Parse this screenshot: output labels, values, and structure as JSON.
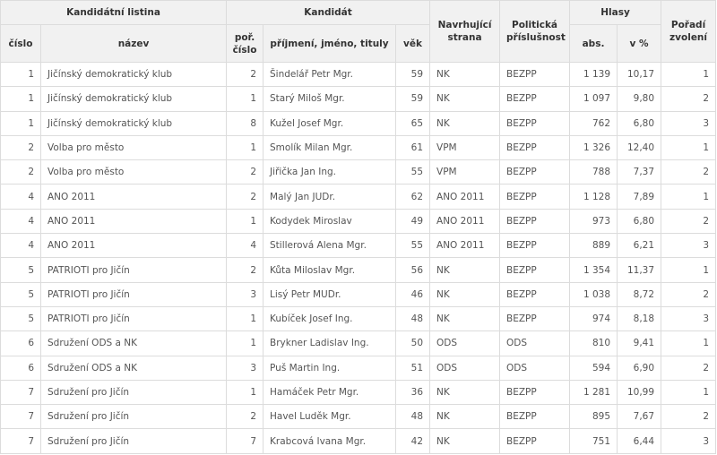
{
  "header": {
    "group_list": "Kandidátní listina",
    "group_candidate": "Kandidát",
    "proposing_party": "Navrhující strana",
    "political_affiliation": "Politická příslušnost",
    "group_votes": "Hlasy",
    "election_order": "Pořadí zvolení",
    "list_number": "číslo",
    "list_name": "název",
    "candidate_order": "poř. číslo",
    "candidate_name": "příjmení, jméno, tituly",
    "age": "věk",
    "votes_abs": "abs.",
    "votes_pct": "v %"
  },
  "rows": [
    {
      "list_no": "1",
      "list_name": "Jičínský demokratický klub",
      "order": "2",
      "name": "Šindelář Petr Mgr.",
      "age": "59",
      "party": "NK",
      "affiliation": "BEZPP",
      "abs": "1 139",
      "pct": "10,17",
      "elected": "1"
    },
    {
      "list_no": "1",
      "list_name": "Jičínský demokratický klub",
      "order": "1",
      "name": "Starý Miloš Mgr.",
      "age": "59",
      "party": "NK",
      "affiliation": "BEZPP",
      "abs": "1 097",
      "pct": "9,80",
      "elected": "2"
    },
    {
      "list_no": "1",
      "list_name": "Jičínský demokratický klub",
      "order": "8",
      "name": "Kužel Josef Mgr.",
      "age": "65",
      "party": "NK",
      "affiliation": "BEZPP",
      "abs": "762",
      "pct": "6,80",
      "elected": "3"
    },
    {
      "list_no": "2",
      "list_name": "Volba pro město",
      "order": "1",
      "name": "Smolík Milan Mgr.",
      "age": "61",
      "party": "VPM",
      "affiliation": "BEZPP",
      "abs": "1 326",
      "pct": "12,40",
      "elected": "1"
    },
    {
      "list_no": "2",
      "list_name": "Volba pro město",
      "order": "2",
      "name": "Jiřička Jan Ing.",
      "age": "55",
      "party": "VPM",
      "affiliation": "BEZPP",
      "abs": "788",
      "pct": "7,37",
      "elected": "2"
    },
    {
      "list_no": "4",
      "list_name": "ANO 2011",
      "order": "2",
      "name": "Malý Jan JUDr.",
      "age": "62",
      "party": "ANO 2011",
      "affiliation": "BEZPP",
      "abs": "1 128",
      "pct": "7,89",
      "elected": "1"
    },
    {
      "list_no": "4",
      "list_name": "ANO 2011",
      "order": "1",
      "name": "Kodydek Miroslav",
      "age": "49",
      "party": "ANO 2011",
      "affiliation": "BEZPP",
      "abs": "973",
      "pct": "6,80",
      "elected": "2"
    },
    {
      "list_no": "4",
      "list_name": "ANO 2011",
      "order": "4",
      "name": "Stillerová Alena Mgr.",
      "age": "55",
      "party": "ANO 2011",
      "affiliation": "BEZPP",
      "abs": "889",
      "pct": "6,21",
      "elected": "3"
    },
    {
      "list_no": "5",
      "list_name": "PATRIOTI pro Jičín",
      "order": "2",
      "name": "Kůta Miloslav Mgr.",
      "age": "56",
      "party": "NK",
      "affiliation": "BEZPP",
      "abs": "1 354",
      "pct": "11,37",
      "elected": "1"
    },
    {
      "list_no": "5",
      "list_name": "PATRIOTI pro Jičín",
      "order": "3",
      "name": "Lisý Petr MUDr.",
      "age": "46",
      "party": "NK",
      "affiliation": "BEZPP",
      "abs": "1 038",
      "pct": "8,72",
      "elected": "2"
    },
    {
      "list_no": "5",
      "list_name": "PATRIOTI pro Jičín",
      "order": "1",
      "name": "Kubíček Josef Ing.",
      "age": "48",
      "party": "NK",
      "affiliation": "BEZPP",
      "abs": "974",
      "pct": "8,18",
      "elected": "3"
    },
    {
      "list_no": "6",
      "list_name": "Sdružení ODS a NK",
      "order": "1",
      "name": "Brykner Ladislav Ing.",
      "age": "50",
      "party": "ODS",
      "affiliation": "ODS",
      "abs": "810",
      "pct": "9,41",
      "elected": "1"
    },
    {
      "list_no": "6",
      "list_name": "Sdružení ODS a NK",
      "order": "3",
      "name": "Puš Martin Ing.",
      "age": "51",
      "party": "ODS",
      "affiliation": "ODS",
      "abs": "594",
      "pct": "6,90",
      "elected": "2"
    },
    {
      "list_no": "7",
      "list_name": "Sdružení pro Jičín",
      "order": "1",
      "name": "Hamáček Petr Mgr.",
      "age": "36",
      "party": "NK",
      "affiliation": "BEZPP",
      "abs": "1 281",
      "pct": "10,99",
      "elected": "1"
    },
    {
      "list_no": "7",
      "list_name": "Sdružení pro Jičín",
      "order": "2",
      "name": "Havel Luděk Mgr.",
      "age": "48",
      "party": "NK",
      "affiliation": "BEZPP",
      "abs": "895",
      "pct": "7,67",
      "elected": "2"
    },
    {
      "list_no": "7",
      "list_name": "Sdružení pro Jičín",
      "order": "7",
      "name": "Krabcová Ivana Mgr.",
      "age": "42",
      "party": "NK",
      "affiliation": "BEZPP",
      "abs": "751",
      "pct": "6,44",
      "elected": "3"
    }
  ]
}
